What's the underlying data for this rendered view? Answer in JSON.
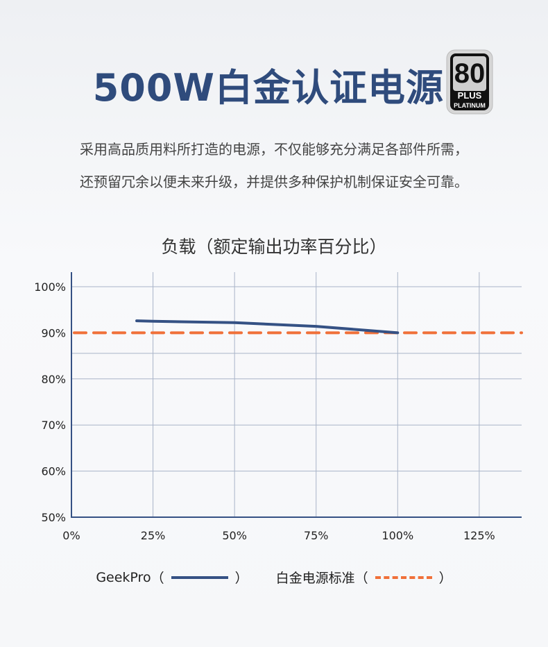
{
  "header": {
    "title": "500W白金认证电源",
    "badge": {
      "top": "80",
      "middle": "PLUS",
      "bottom": "PLATINUM"
    }
  },
  "description": [
    "采用高品质用料所打造的电源，不仅能够充分满足各部件所需，",
    "还预留冗余以便未来升级，并提供多种保护机制保证安全可靠。"
  ],
  "chart_data": {
    "type": "line",
    "title": "负载（额定输出功率百分比）",
    "xlim": [
      0,
      138
    ],
    "ylim": [
      50,
      100
    ],
    "x_ticks": [
      "0%",
      "25%",
      "50%",
      "75%",
      "100%",
      "125%"
    ],
    "x_tick_values": [
      0,
      25,
      50,
      75,
      100,
      125
    ],
    "y_ticks": [
      "50%",
      "60%",
      "70%",
      "80%",
      "90%",
      "100%"
    ],
    "y_tick_values": [
      50,
      60,
      70,
      80,
      90,
      100
    ],
    "grid": true,
    "legend_position": "bottom",
    "series": [
      {
        "name": "GeekPro",
        "color": "#355184",
        "style": "solid",
        "x": [
          20,
          25,
          50,
          75,
          100
        ],
        "y": [
          92.6,
          92.5,
          92.2,
          91.4,
          90.0
        ]
      },
      {
        "name": "白金电源标准",
        "color": "#f07039",
        "style": "dashed",
        "x": [
          0,
          138
        ],
        "y": [
          90,
          90
        ]
      }
    ]
  },
  "legend": {
    "open": "（",
    "close": "）"
  }
}
